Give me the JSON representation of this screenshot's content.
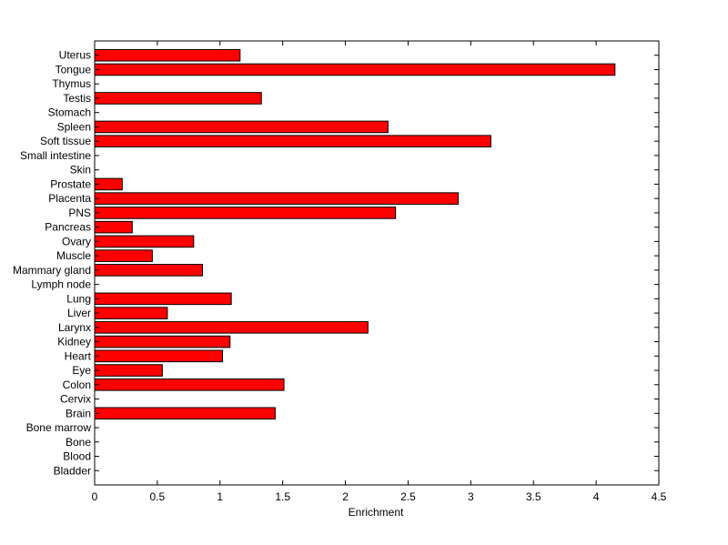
{
  "chart_data": {
    "type": "bar",
    "orientation": "horizontal",
    "title": "",
    "xlabel": "Enrichment",
    "ylabel": "",
    "xlim": [
      0,
      4.5
    ],
    "xticks": [
      "0",
      "0.5",
      "1",
      "1.5",
      "2",
      "2.5",
      "3",
      "3.5",
      "4",
      "4.5"
    ],
    "grid": false,
    "bar_color": "#ff0000",
    "bar_edge_color": "#000000",
    "categories": [
      "Bladder",
      "Blood",
      "Bone",
      "Bone marrow",
      "Brain",
      "Cervix",
      "Colon",
      "Eye",
      "Heart",
      "Kidney",
      "Larynx",
      "Liver",
      "Lung",
      "Lymph node",
      "Mammary gland",
      "Muscle",
      "Ovary",
      "Pancreas",
      "PNS",
      "Placenta",
      "Prostate",
      "Skin",
      "Small intestine",
      "Soft tissue",
      "Spleen",
      "Stomach",
      "Testis",
      "Thymus",
      "Tongue",
      "Uterus"
    ],
    "values": [
      0,
      0,
      0,
      0,
      1.44,
      0,
      1.51,
      0.54,
      1.02,
      1.08,
      2.18,
      0.58,
      1.09,
      0,
      0.86,
      0.46,
      0.79,
      0.3,
      2.4,
      2.9,
      0.22,
      0,
      0,
      3.16,
      2.34,
      0,
      1.33,
      0,
      4.15,
      1.16
    ]
  }
}
